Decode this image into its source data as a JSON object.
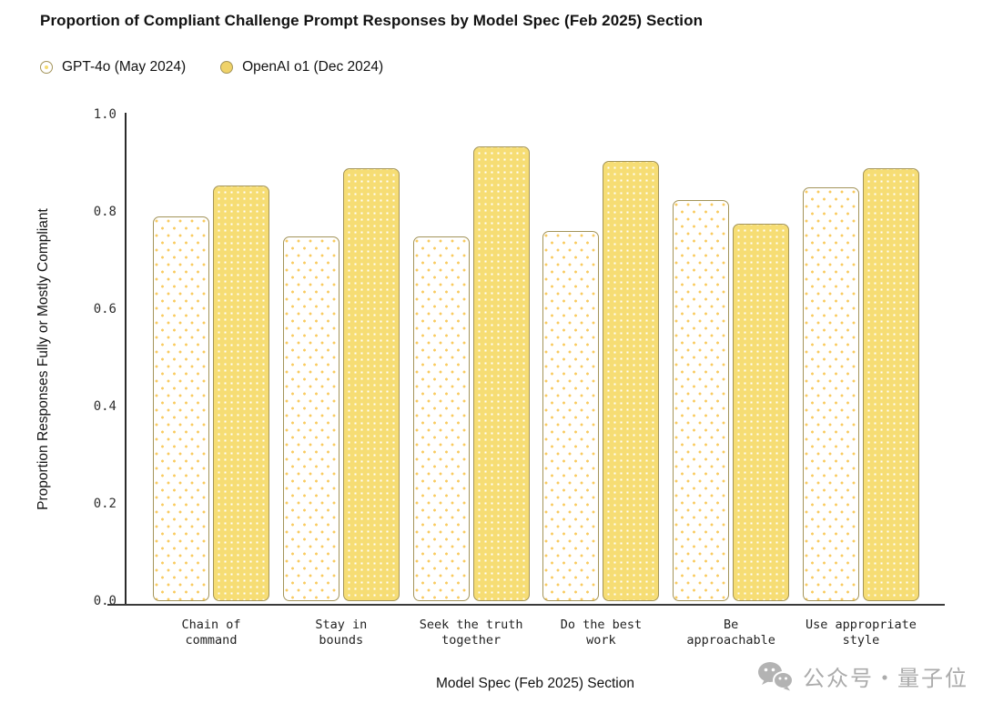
{
  "title": "Proportion of Compliant Challenge Prompt Responses by Model Spec (Feb 2025) Section",
  "legend": [
    {
      "label": "GPT-4o (May 2024)",
      "swatch": "white-dotted-circle"
    },
    {
      "label": "OpenAI o1 (Dec 2024)",
      "swatch": "yellow-circle"
    }
  ],
  "chart_data": {
    "type": "bar",
    "title": "Proportion of Compliant Challenge Prompt Responses by Model Spec (Feb 2025) Section",
    "xlabel": "Model Spec (Feb 2025) Section",
    "ylabel": "Proportion Responses Fully or Mostly Compliant",
    "ylim": [
      0.0,
      1.0
    ],
    "ytick_labels": [
      "1.0",
      "0.8",
      "0.6",
      "0.4",
      "0.2",
      "0.0"
    ],
    "grid": false,
    "legend_position": "top-left",
    "categories": [
      "Chain of command",
      "Stay in bounds",
      "Seek the truth together",
      "Do the best work",
      "Be approachable",
      "Use appropriate style"
    ],
    "category_lines": [
      [
        "Chain of",
        "command"
      ],
      [
        "Stay in",
        "bounds"
      ],
      [
        "Seek the truth",
        "together"
      ],
      [
        "Do the best",
        "work"
      ],
      [
        "Be",
        "approachable"
      ],
      [
        "Use appropriate",
        "style"
      ]
    ],
    "series": [
      {
        "name": "GPT-4o (May 2024)",
        "pattern": "yellow dots on white",
        "values": [
          0.79,
          0.75,
          0.75,
          0.76,
          0.825,
          0.85
        ]
      },
      {
        "name": "OpenAI o1 (Dec 2024)",
        "pattern": "white dots on yellow",
        "values": [
          0.855,
          0.89,
          0.935,
          0.905,
          0.775,
          0.89
        ]
      }
    ],
    "colors": {
      "bar_fill_yellow": "#F6DD74",
      "bar_border": "#A3945A",
      "dot_yellow": "#F9CB5F",
      "axis": "#2B2B2B",
      "text": "#151515"
    }
  },
  "watermark": {
    "icon": "wechat-icon",
    "text": "公众号・量子位",
    "color": "#ABABAB"
  }
}
